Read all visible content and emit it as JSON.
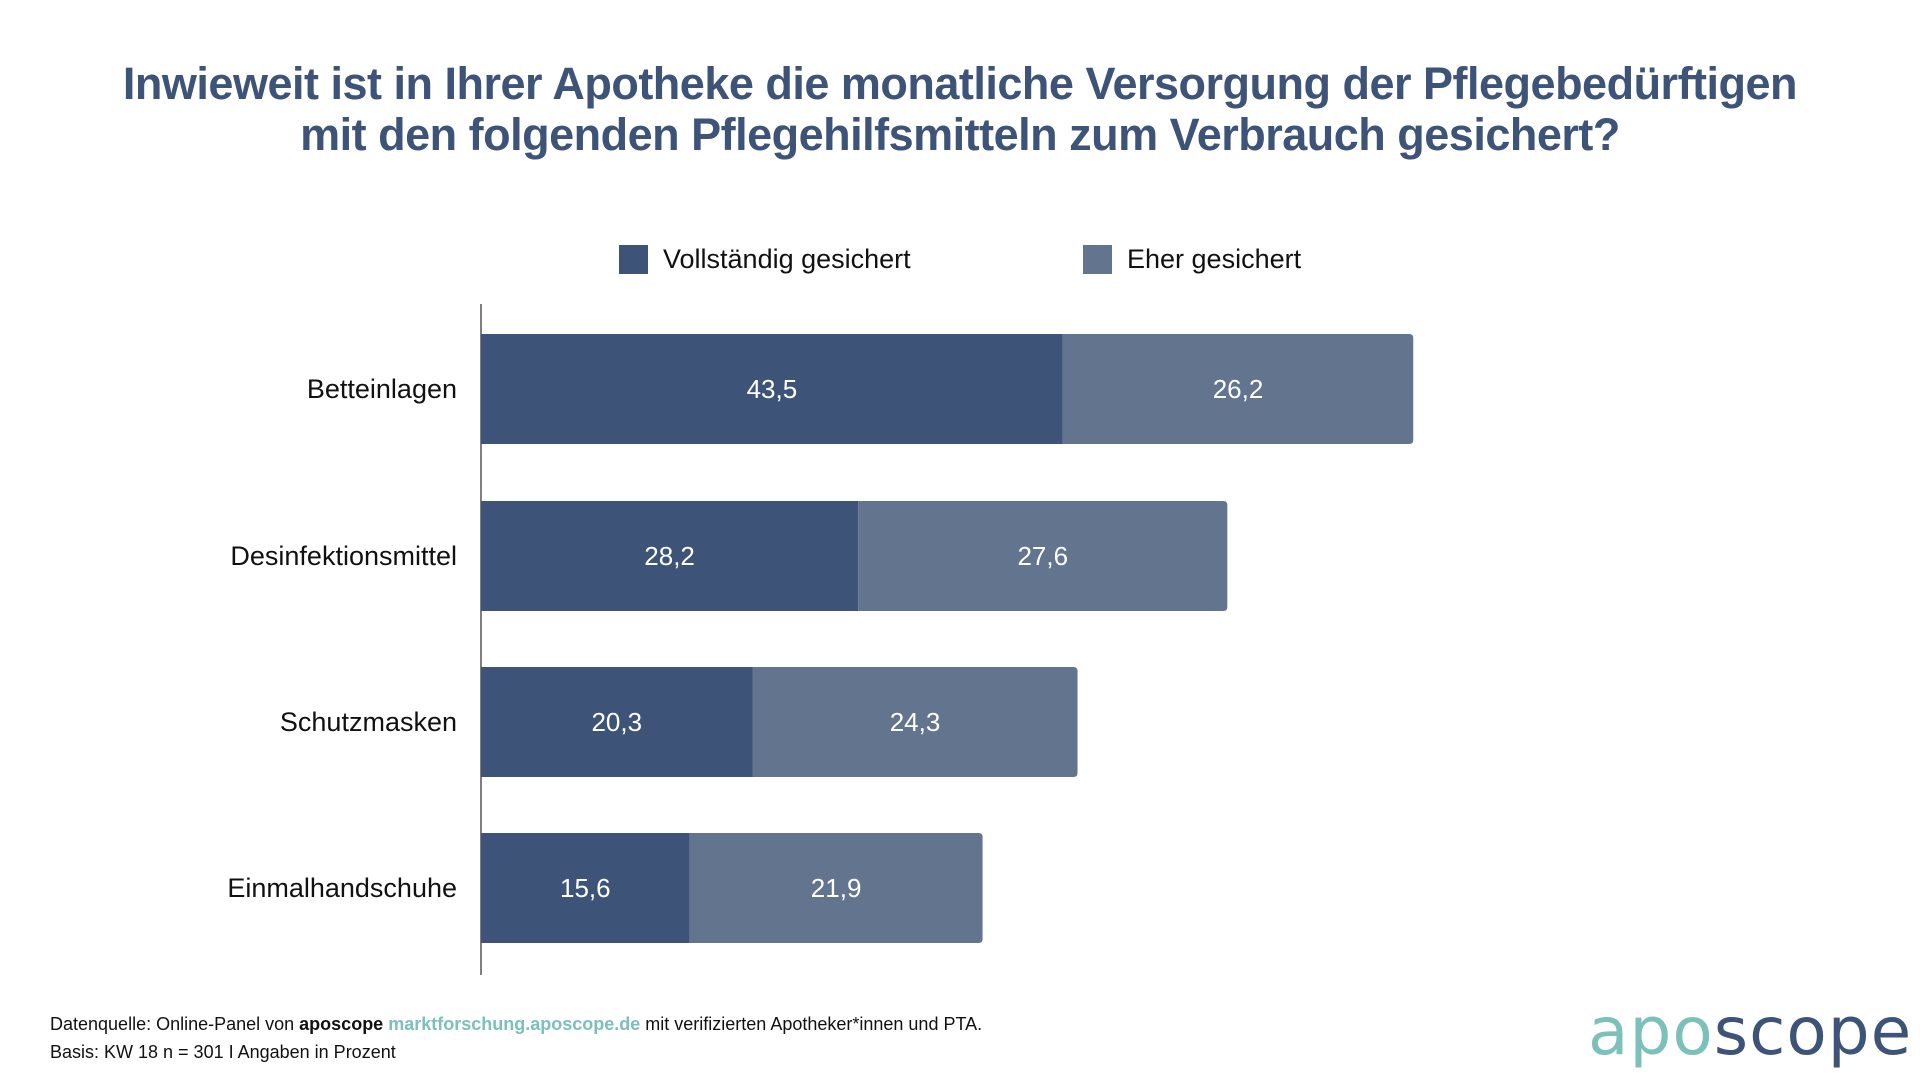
{
  "title": {
    "line1": "Inwieweit ist in Ihrer Apotheke die monatliche Versorgung der Pflegebedürftigen",
    "line2": "mit den folgenden Pflegehilfsmitteln zum Verbrauch gesichert?"
  },
  "colors": {
    "title": "#3d5378",
    "series_dark": "#3d5378",
    "series_light": "#63748f",
    "accent_teal": "#7cc1b9"
  },
  "legend": [
    {
      "label": "Vollständig gesichert"
    },
    {
      "label": "Eher gesichert"
    }
  ],
  "chart_data": {
    "type": "bar",
    "orientation": "horizontal",
    "stacked": true,
    "title": "Inwieweit ist in Ihrer Apotheke die monatliche Versorgung der Pflegebedürftigen mit den folgenden Pflegehilfsmitteln zum Verbrauch gesichert?",
    "categories": [
      "Betteinlagen",
      "Desinfektionsmittel",
      "Schutzmasken",
      "Einmalhandschuhe"
    ],
    "series": [
      {
        "name": "Vollständig gesichert",
        "values": [
          43.5,
          28.2,
          20.3,
          15.6
        ],
        "labels": [
          "43,5",
          "28,2",
          "20,3",
          "15,6"
        ],
        "color": "#3d5378"
      },
      {
        "name": "Eher gesichert",
        "values": [
          26.2,
          27.6,
          24.3,
          21.9
        ],
        "labels": [
          "26,2",
          "27,6",
          "24,3",
          "21,9"
        ],
        "color": "#63748f"
      }
    ],
    "xlabel": "",
    "ylabel": "",
    "xlim": [
      0,
      100
    ],
    "grid": false,
    "legend_position": "top"
  },
  "footer": {
    "line1_prefix": "Datenquelle: Online-Panel von ",
    "line1_brand": "aposcope",
    "line1_link": "marktforschung.aposcope.de",
    "line1_suffix": " mit verifizierten Apotheker*innen und PTA.",
    "line2": "Basis: KW 18 n = 301 I Angaben in Prozent"
  },
  "logo": {
    "part1": "apo",
    "part2": "scope"
  }
}
